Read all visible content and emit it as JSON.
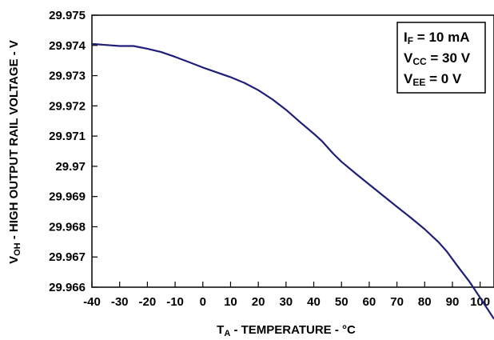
{
  "chart_data": {
    "type": "line",
    "title": "",
    "xlabel": {
      "main": "T",
      "sub": "A",
      "rest": " - TEMPERATURE - °C"
    },
    "ylabel": {
      "main": "V",
      "sub": "OH",
      "rest": " - HIGH OUTPUT RAIL VOLTAGE - V"
    },
    "xlim": [
      -40,
      105
    ],
    "ylim": [
      29.966,
      29.975
    ],
    "x_ticks": [
      -40,
      -30,
      -20,
      -10,
      0,
      10,
      20,
      30,
      40,
      50,
      60,
      70,
      80,
      90,
      100
    ],
    "x_tick_labels": [
      "-40",
      "-30",
      "-20",
      "-10",
      "0",
      "10",
      "20",
      "30",
      "40",
      "50",
      "60",
      "70",
      "80",
      "90",
      "100"
    ],
    "y_ticks": [
      29.966,
      29.967,
      29.968,
      29.969,
      29.97,
      29.971,
      29.972,
      29.973,
      29.974,
      29.975
    ],
    "y_tick_labels": [
      "29.966",
      "29.967",
      "29.968",
      "29.969",
      "29.97",
      "29.971",
      "29.972",
      "29.973",
      "29.974",
      "29.975"
    ],
    "grid": false,
    "legend_position": "top-right",
    "annotation_lines": [
      {
        "main": "I",
        "sub": "F",
        "rest": " = 10 mA"
      },
      {
        "main": "V",
        "sub": "CC",
        "rest": " = 30 V"
      },
      {
        "main": "V",
        "sub": "EE",
        "rest": " = 0 V"
      }
    ],
    "series": [
      {
        "color": "#1f1f7a",
        "x": [
          -40,
          -30,
          -25,
          -20,
          -15,
          -10,
          -5,
          0,
          5,
          10,
          15,
          20,
          25,
          30,
          35,
          40,
          43,
          47,
          50,
          55,
          60,
          65,
          70,
          75,
          80,
          85,
          88,
          92,
          96,
          100,
          105
        ],
        "y": [
          29.97405,
          29.97398,
          29.97398,
          29.97389,
          29.97378,
          29.97362,
          29.97345,
          29.97327,
          29.97311,
          29.97295,
          29.97276,
          29.97252,
          29.97222,
          29.97187,
          29.97147,
          29.97108,
          29.97083,
          29.97042,
          29.97015,
          29.96977,
          29.9694,
          29.96903,
          29.96866,
          29.9683,
          29.96792,
          29.96749,
          29.96718,
          29.96668,
          29.9662,
          29.96565,
          29.96495
        ]
      }
    ]
  }
}
